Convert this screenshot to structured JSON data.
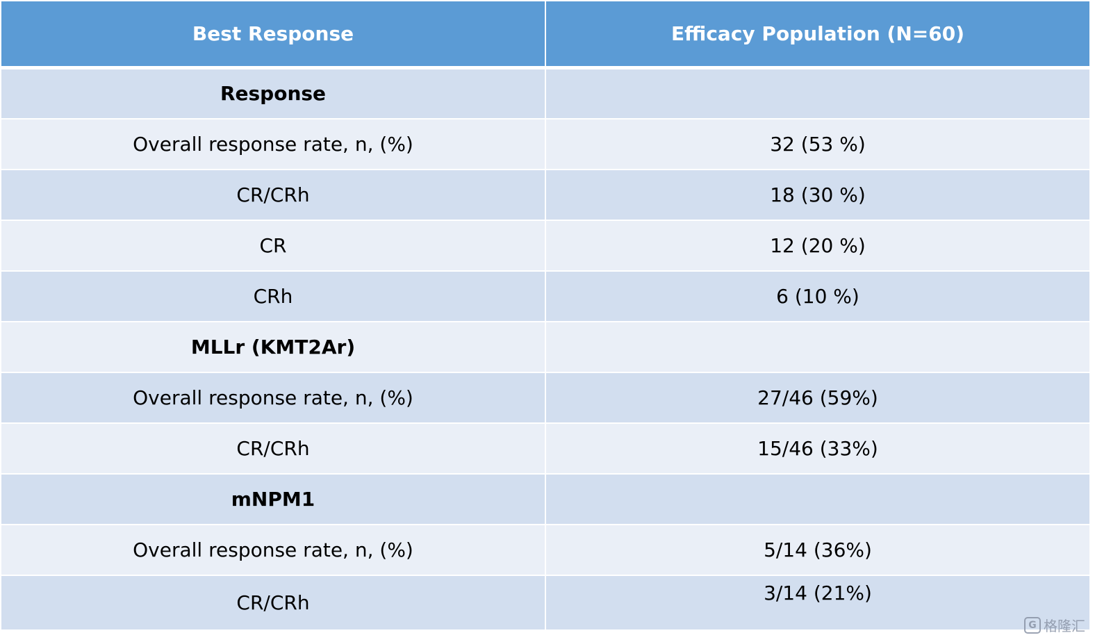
{
  "table": {
    "headers": [
      "Best Response",
      "Efficacy Population (N=60)"
    ],
    "rows": [
      {
        "label": "Response",
        "value": ""
      },
      {
        "label": "Overall response rate, n,  (%)",
        "value": "32  (53 %)"
      },
      {
        "label": "CR/CRh",
        "value": "18  (30 %)"
      },
      {
        "label": "CR",
        "value": "12  (20 %)"
      },
      {
        "label": "CRh",
        "value": "6  (10 %)"
      },
      {
        "label": "MLLr  (KMT2Ar)",
        "value": ""
      },
      {
        "label": "Overall response rate, n,  (%)",
        "value": "27/46  (59%)"
      },
      {
        "label": "CR/CRh",
        "value": "15/46  (33%)"
      },
      {
        "label": "mNPM1",
        "value": ""
      },
      {
        "label": "Overall response rate, n,  (%)",
        "value": "5/14  (36%)"
      },
      {
        "label": "CR/CRh",
        "value": "3/14  (21%)"
      }
    ]
  },
  "watermark": {
    "logo_letter": "G",
    "text": "格隆汇"
  },
  "colors": {
    "header": "#5b9bd5",
    "row_dark": "#d2deef",
    "row_light": "#eaeff7"
  }
}
